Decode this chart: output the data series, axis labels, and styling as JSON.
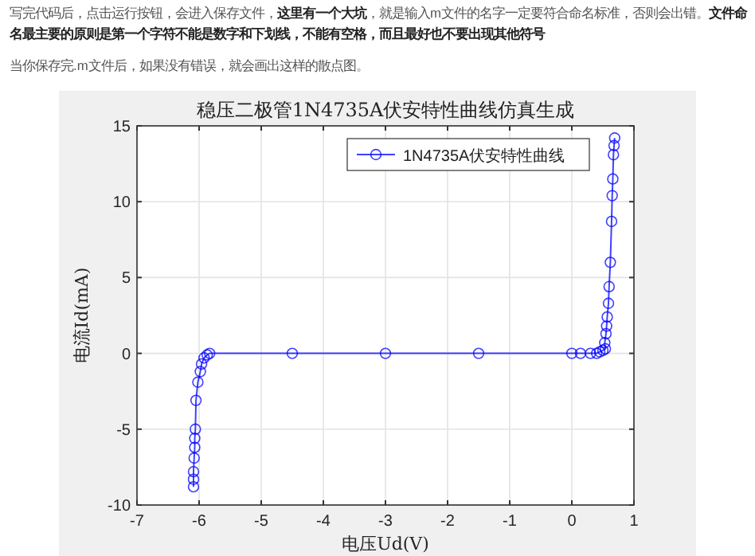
{
  "chart_data": {
    "type": "line",
    "title": "稳压二极管1N4735A伏安特性曲线仿真生成",
    "xlabel": "电压Ud(V)",
    "ylabel": "电流Id(mA)",
    "annotations": [
      "写完代码后，点击运行按钮，会进入保存文件，**这里有一个大坑**，就是输入m文件的名字一定要符合命名标准，否则会出错。**文件命名最主要的原则是第一个字符不能是数字和下划线，不能有空格，而且最好也不要出现其他符号**",
      "当你保存完.m文件后，如果没有错误，就会画出这样的散点图。"
    ],
    "x": [
      -6.09,
      -6.09,
      -6.09,
      -6.08,
      -6.07,
      -6.07,
      -6.06,
      -6.05,
      -6.02,
      -5.98,
      -5.96,
      -5.92,
      -5.87,
      -5.83,
      -4.5,
      -3,
      -1.5,
      0,
      0.14,
      0.3,
      0.4,
      0.45,
      0.5,
      0.54,
      0.53,
      0.55,
      0.56,
      0.57,
      0.59,
      0.6,
      0.62,
      0.64,
      0.65,
      0.66,
      0.67,
      0.68,
      0.69
    ],
    "series": [
      {
        "name": "1N4735A伏安特性曲线",
        "color": "#0000ff",
        "values": [
          -8.8,
          -8.3,
          -7.8,
          -6.9,
          -6.2,
          -5.6,
          -5.0,
          -3.1,
          -1.9,
          -1.2,
          -0.7,
          -0.3,
          -0.1,
          0,
          0,
          0,
          0,
          0,
          0,
          0,
          0,
          0.1,
          0.2,
          0.3,
          0.7,
          1.3,
          1.8,
          2.4,
          3.3,
          4.4,
          6.0,
          8.7,
          10.4,
          11.5,
          13.1,
          13.7,
          14.2
        ]
      }
    ],
    "xlim": [
      -7,
      1
    ],
    "ylim": [
      -10,
      15
    ],
    "xticks": [
      -7,
      -6,
      -5,
      -4,
      -3,
      -2,
      -1,
      0,
      1
    ],
    "yticks": [
      -10,
      -5,
      0,
      5,
      10,
      15
    ],
    "grid": true,
    "legend": "top right",
    "marker": "circle",
    "line_style": "solid"
  }
}
